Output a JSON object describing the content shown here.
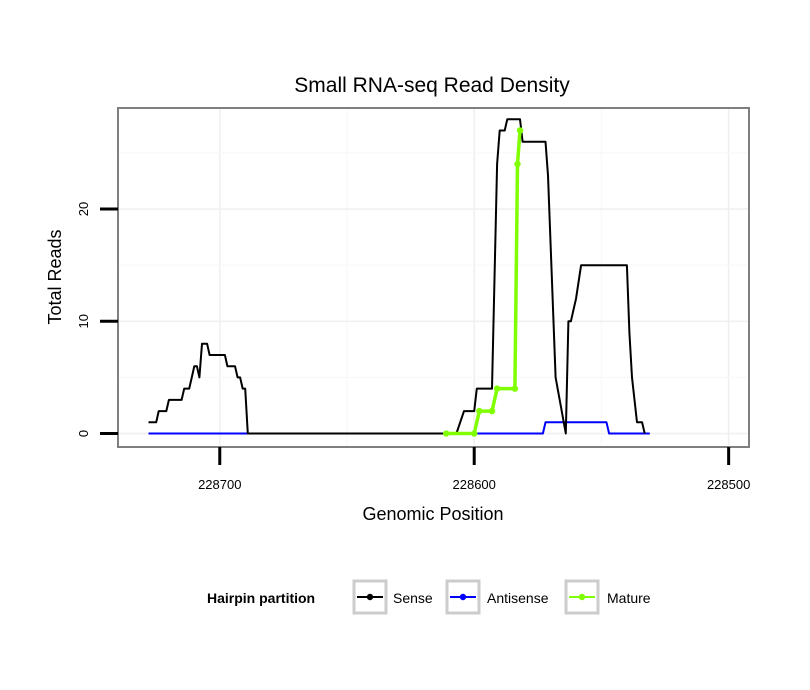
{
  "chart_data": {
    "type": "line",
    "title": "Small RNA-seq Read Density",
    "xlabel": "Genomic Position",
    "ylabel": "Total Reads",
    "x_reversed": true,
    "xlim": [
      228740,
      228492
    ],
    "ylim": [
      -1.2,
      29
    ],
    "x_ticks": [
      228700,
      228600,
      228500
    ],
    "x_tick_labels": [
      "228700",
      "228600",
      "228500"
    ],
    "y_ticks": [
      0,
      10,
      20
    ],
    "y_tick_labels": [
      "0",
      "10",
      "20"
    ],
    "grid": true,
    "legend": {
      "title": "Hairpin partition",
      "position": "bottom",
      "entries": [
        {
          "label": "Sense",
          "color": "#000000"
        },
        {
          "label": "Antisense",
          "color": "#0000ff"
        },
        {
          "label": "Mature",
          "color": "#7fff00"
        }
      ]
    },
    "series": [
      {
        "name": "Sense",
        "color": "#000000",
        "points": [
          [
            228728,
            1
          ],
          [
            228725,
            1
          ],
          [
            228724,
            2
          ],
          [
            228721,
            2
          ],
          [
            228720,
            3
          ],
          [
            228715,
            3
          ],
          [
            228714,
            4
          ],
          [
            228712,
            4
          ],
          [
            228711,
            5
          ],
          [
            228710,
            6
          ],
          [
            228709,
            6
          ],
          [
            228708,
            5
          ],
          [
            228707,
            8
          ],
          [
            228705,
            8
          ],
          [
            228704,
            7
          ],
          [
            228698,
            7
          ],
          [
            228697,
            6
          ],
          [
            228694,
            6
          ],
          [
            228693,
            5
          ],
          [
            228692,
            5
          ],
          [
            228691,
            4
          ],
          [
            228690,
            4
          ],
          [
            228689,
            0
          ],
          [
            228610,
            0
          ],
          [
            228607,
            0
          ],
          [
            228604,
            2
          ],
          [
            228600,
            2
          ],
          [
            228599,
            4
          ],
          [
            228593,
            4
          ],
          [
            228591,
            24
          ],
          [
            228590,
            27
          ],
          [
            228588,
            27
          ],
          [
            228587,
            28
          ],
          [
            228582,
            28
          ],
          [
            228581,
            26
          ],
          [
            228572,
            26
          ],
          [
            228571,
            23
          ],
          [
            228568,
            5
          ],
          [
            228564,
            0
          ],
          [
            228563,
            10
          ],
          [
            228562,
            10
          ],
          [
            228561,
            11
          ],
          [
            228560,
            12
          ],
          [
            228558,
            15
          ],
          [
            228540,
            15
          ],
          [
            228539,
            9
          ],
          [
            228538,
            5
          ],
          [
            228537,
            3
          ],
          [
            228536,
            1
          ],
          [
            228534,
            1
          ],
          [
            228533,
            0
          ]
        ]
      },
      {
        "name": "Antisense",
        "color": "#0000ff",
        "points": [
          [
            228728,
            0
          ],
          [
            228573,
            0
          ],
          [
            228572,
            1
          ],
          [
            228560,
            1
          ],
          [
            228548,
            1
          ],
          [
            228547,
            0
          ],
          [
            228531,
            0
          ]
        ]
      },
      {
        "name": "Mature",
        "color": "#7fff00",
        "points": [
          [
            228611,
            0
          ],
          [
            228600,
            0
          ],
          [
            228598,
            2
          ],
          [
            228593,
            2
          ],
          [
            228591,
            4
          ],
          [
            228584,
            4
          ],
          [
            228583,
            24
          ],
          [
            228582,
            27
          ]
        ]
      }
    ]
  }
}
